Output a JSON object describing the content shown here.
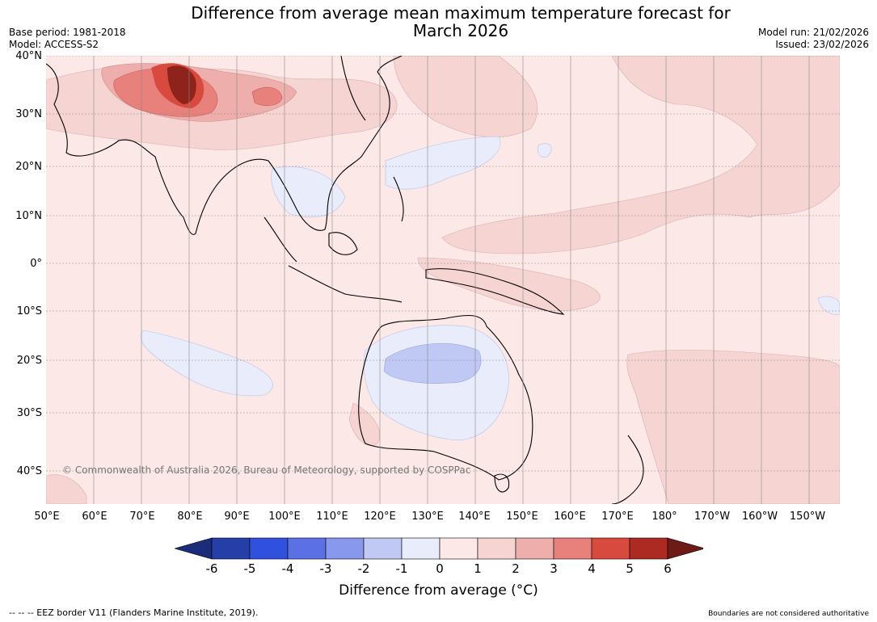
{
  "header": {
    "title_line1": "Difference from average mean maximum temperature forecast for",
    "title_line2": "March 2026",
    "base_period": "Base period: 1981-2018",
    "model": "Model: ACCESS-S2",
    "model_run": "Model run: 21/02/2026",
    "issued": "Issued: 23/02/2026"
  },
  "map": {
    "copyright": "© Commonwealth of Australia 2026, Bureau of Meteorology, supported by COSPPac",
    "latitude_labels": [
      "40°N",
      "30°N",
      "20°N",
      "10°N",
      "0°",
      "10°S",
      "20°S",
      "30°S",
      "40°S"
    ],
    "longitude_labels": [
      "50°E",
      "60°E",
      "70°E",
      "80°E",
      "90°E",
      "100°E",
      "110°E",
      "120°E",
      "130°E",
      "140°E",
      "150°E",
      "160°E",
      "170°E",
      "180°",
      "170°W",
      "160°W",
      "150°W"
    ]
  },
  "colorbar": {
    "ticks": [
      "-6",
      "-5",
      "-4",
      "-3",
      "-2",
      "-1",
      "0",
      "1",
      "2",
      "3",
      "4",
      "5",
      "6"
    ],
    "colors": [
      "#1b2c7a",
      "#263ea8",
      "#3050de",
      "#5a70e4",
      "#8898ec",
      "#c0c8f4",
      "#e8ecfb",
      "#fce8e6",
      "#f5d4d2",
      "#eeaeab",
      "#e8817b",
      "#d94a3e",
      "#ac2a22",
      "#6e1b17"
    ],
    "label": "Difference from average (°C)"
  },
  "footer": {
    "eez_note": "--  --  -- EEZ border V11 (Flanders Marine Institute, 2019).",
    "disclaimer": "Boundaries are not considered authoritative"
  }
}
